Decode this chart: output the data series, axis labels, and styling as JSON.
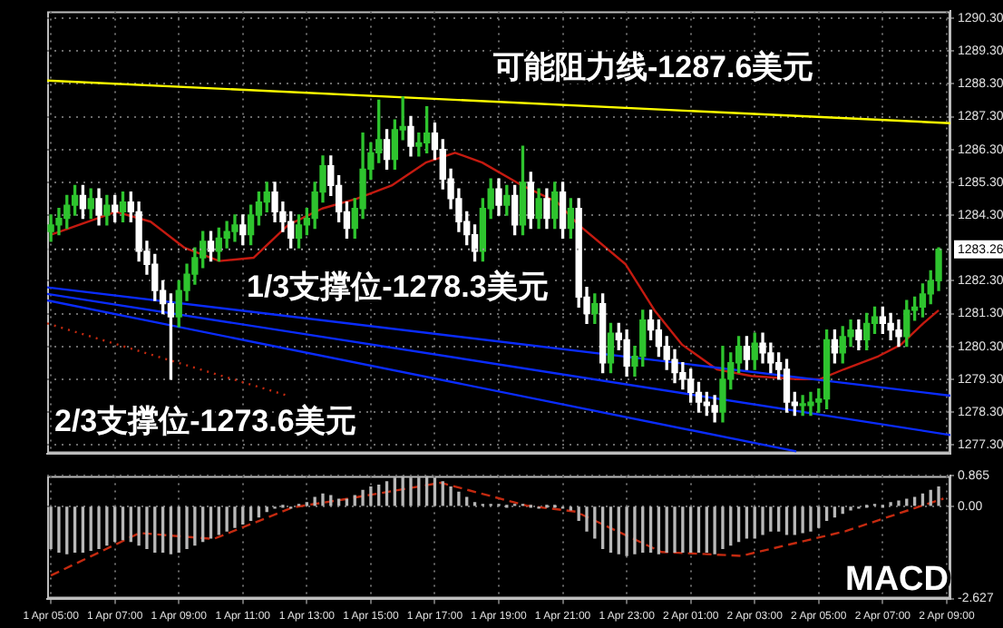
{
  "chart_data": [
    {
      "type": "candlestick",
      "x": [
        "--04-01T05:00",
        "--04-01T05:15",
        "--04-01T05:30",
        "--04-01T05:45",
        "--04-01T06:00",
        "--04-01T06:15",
        "--04-01T06:30",
        "--04-01T06:45",
        "--04-01T07:00",
        "--04-01T07:15",
        "--04-01T07:30",
        "--04-01T07:45",
        "--04-01T08:00",
        "--04-01T08:15",
        "--04-01T08:30",
        "--04-01T08:45",
        "--04-01T09:00",
        "--04-01T09:15",
        "--04-01T09:30",
        "--04-01T09:45",
        "--04-01T10:00",
        "--04-01T10:15",
        "--04-01T10:30",
        "--04-01T10:45",
        "--04-01T11:00",
        "--04-01T11:15",
        "--04-01T11:30",
        "--04-01T11:45",
        "--04-01T12:00",
        "--04-01T12:15",
        "--04-01T12:30",
        "--04-01T12:45",
        "--04-01T13:00",
        "--04-01T13:15",
        "--04-01T13:30",
        "--04-01T13:45",
        "--04-01T14:00",
        "--04-01T14:15",
        "--04-01T14:30",
        "--04-01T14:45",
        "--04-01T15:00",
        "--04-01T15:15",
        "--04-01T15:30",
        "--04-01T15:45",
        "--04-01T16:00",
        "--04-01T16:15",
        "--04-01T16:30",
        "--04-01T16:45",
        "--04-01T17:00",
        "--04-01T17:15",
        "--04-01T17:30",
        "--04-01T17:45",
        "--04-01T18:00",
        "--04-01T18:15",
        "--04-01T18:30",
        "--04-01T18:45",
        "--04-01T19:00",
        "--04-01T19:15",
        "--04-01T19:30",
        "--04-01T19:45",
        "--04-01T20:00",
        "--04-01T20:15",
        "--04-01T20:30",
        "--04-01T20:45",
        "--04-01T21:00",
        "--04-01T21:15",
        "--04-01T21:30",
        "--04-01T21:45",
        "--04-01T22:00",
        "--04-01T22:15",
        "--04-01T22:30",
        "--04-01T22:45",
        "--04-01T23:00",
        "--04-01T23:15",
        "--04-01T23:30",
        "--04-01T23:45",
        "--04-02T00:00",
        "--04-02T00:15",
        "--04-02T00:30",
        "--04-02T00:45",
        "--04-02T01:00",
        "--04-02T01:15",
        "--04-02T01:30",
        "--04-02T01:45",
        "--04-02T02:00",
        "--04-02T02:15",
        "--04-02T02:30",
        "--04-02T02:45",
        "--04-02T03:00",
        "--04-02T03:15",
        "--04-02T03:30",
        "--04-02T03:45",
        "--04-02T04:00",
        "--04-02T04:15",
        "--04-02T04:30",
        "--04-02T04:45",
        "--04-02T05:00",
        "--04-02T05:15",
        "--04-02T05:30",
        "--04-02T05:45",
        "--04-02T06:00",
        "--04-02T06:15",
        "--04-02T06:30",
        "--04-02T06:45",
        "--04-02T07:00",
        "--04-02T07:15",
        "--04-02T07:30",
        "--04-02T07:45",
        "--04-02T08:00",
        "--04-02T08:15",
        "--04-02T08:30",
        "--04-02T08:45"
      ],
      "ohlc": [
        [
          1283.8,
          1284.3,
          1283.5,
          1284.0
        ],
        [
          1284.0,
          1284.5,
          1283.7,
          1284.2
        ],
        [
          1284.2,
          1284.9,
          1283.9,
          1284.6
        ],
        [
          1284.6,
          1285.2,
          1284.3,
          1284.9
        ],
        [
          1284.9,
          1285.2,
          1284.2,
          1284.5
        ],
        [
          1284.5,
          1285.1,
          1284.2,
          1284.8
        ],
        [
          1284.8,
          1285.1,
          1284.0,
          1284.3
        ],
        [
          1284.3,
          1284.9,
          1284.0,
          1284.6
        ],
        [
          1284.6,
          1284.9,
          1284.1,
          1284.4
        ],
        [
          1284.4,
          1285.0,
          1284.1,
          1284.7
        ],
        [
          1284.7,
          1285.0,
          1284.1,
          1284.4
        ],
        [
          1284.4,
          1284.7,
          1282.9,
          1283.2
        ],
        [
          1283.2,
          1283.5,
          1282.5,
          1282.8
        ],
        [
          1282.8,
          1283.1,
          1281.7,
          1282.0
        ],
        [
          1282.0,
          1282.3,
          1281.3,
          1281.6
        ],
        [
          1281.6,
          1281.9,
          1279.3,
          1281.2
        ],
        [
          1281.2,
          1282.3,
          1280.9,
          1282.0
        ],
        [
          1282.0,
          1282.8,
          1281.7,
          1282.5
        ],
        [
          1282.5,
          1283.3,
          1282.2,
          1283.0
        ],
        [
          1283.0,
          1283.8,
          1282.7,
          1283.5
        ],
        [
          1283.5,
          1283.8,
          1282.9,
          1283.2
        ],
        [
          1283.2,
          1283.9,
          1282.9,
          1283.6
        ],
        [
          1283.6,
          1284.1,
          1283.3,
          1283.8
        ],
        [
          1283.8,
          1284.3,
          1283.5,
          1284.0
        ],
        [
          1284.0,
          1284.3,
          1283.4,
          1283.7
        ],
        [
          1283.7,
          1284.6,
          1283.4,
          1284.3
        ],
        [
          1284.3,
          1285.0,
          1284.0,
          1284.7
        ],
        [
          1284.7,
          1285.3,
          1284.4,
          1285.0
        ],
        [
          1285.0,
          1285.3,
          1284.1,
          1284.4
        ],
        [
          1284.4,
          1284.7,
          1283.8,
          1284.1
        ],
        [
          1284.1,
          1284.4,
          1283.3,
          1283.6
        ],
        [
          1283.6,
          1284.3,
          1283.3,
          1284.0
        ],
        [
          1284.0,
          1284.5,
          1283.7,
          1284.2
        ],
        [
          1284.2,
          1285.3,
          1283.9,
          1285.0
        ],
        [
          1285.0,
          1286.1,
          1284.7,
          1285.8
        ],
        [
          1285.8,
          1286.1,
          1284.9,
          1285.2
        ],
        [
          1285.2,
          1285.5,
          1284.1,
          1284.4
        ],
        [
          1284.4,
          1284.7,
          1283.6,
          1283.9
        ],
        [
          1283.9,
          1284.8,
          1283.6,
          1284.5
        ],
        [
          1284.5,
          1286.8,
          1284.2,
          1285.7
        ],
        [
          1285.7,
          1286.5,
          1285.4,
          1286.2
        ],
        [
          1286.2,
          1287.8,
          1285.9,
          1286.6
        ],
        [
          1286.6,
          1286.9,
          1285.7,
          1286.0
        ],
        [
          1286.0,
          1287.2,
          1285.7,
          1286.9
        ],
        [
          1286.9,
          1287.9,
          1286.6,
          1287.0
        ],
        [
          1287.0,
          1287.3,
          1286.1,
          1286.4
        ],
        [
          1286.4,
          1286.8,
          1286.1,
          1286.5
        ],
        [
          1286.5,
          1287.6,
          1286.2,
          1286.8
        ],
        [
          1286.8,
          1287.1,
          1286.0,
          1286.3
        ],
        [
          1286.3,
          1286.6,
          1285.1,
          1285.4
        ],
        [
          1285.4,
          1285.7,
          1284.5,
          1284.8
        ],
        [
          1284.8,
          1285.1,
          1283.8,
          1284.1
        ],
        [
          1284.1,
          1284.4,
          1283.4,
          1283.7
        ],
        [
          1283.7,
          1284.0,
          1282.9,
          1283.2
        ],
        [
          1283.2,
          1284.8,
          1282.9,
          1284.5
        ],
        [
          1284.5,
          1285.4,
          1284.2,
          1285.1
        ],
        [
          1285.1,
          1285.4,
          1284.3,
          1284.6
        ],
        [
          1284.6,
          1285.2,
          1284.3,
          1284.9
        ],
        [
          1284.9,
          1285.2,
          1283.7,
          1284.0
        ],
        [
          1284.0,
          1286.4,
          1283.7,
          1285.3
        ],
        [
          1285.3,
          1285.6,
          1283.9,
          1284.2
        ],
        [
          1284.2,
          1285.1,
          1283.9,
          1284.8
        ],
        [
          1284.8,
          1285.1,
          1283.9,
          1284.2
        ],
        [
          1284.2,
          1285.3,
          1283.9,
          1285.0
        ],
        [
          1285.0,
          1285.3,
          1283.6,
          1283.9
        ],
        [
          1283.9,
          1284.8,
          1283.6,
          1284.5
        ],
        [
          1284.5,
          1284.8,
          1281.5,
          1281.8
        ],
        [
          1281.8,
          1282.1,
          1281.0,
          1281.3
        ],
        [
          1281.3,
          1281.9,
          1281.0,
          1281.6
        ],
        [
          1281.6,
          1281.9,
          1279.5,
          1279.8
        ],
        [
          1279.8,
          1281.0,
          1279.5,
          1280.7
        ],
        [
          1280.7,
          1281.0,
          1280.2,
          1280.5
        ],
        [
          1280.5,
          1280.8,
          1279.4,
          1279.7
        ],
        [
          1279.7,
          1280.3,
          1279.4,
          1280.0
        ],
        [
          1280.0,
          1281.4,
          1279.7,
          1281.1
        ],
        [
          1281.1,
          1281.4,
          1280.5,
          1280.8
        ],
        [
          1280.8,
          1281.1,
          1280.0,
          1280.3
        ],
        [
          1280.3,
          1280.6,
          1279.6,
          1279.9
        ],
        [
          1279.9,
          1280.2,
          1279.2,
          1279.5
        ],
        [
          1279.5,
          1279.8,
          1279.0,
          1279.3
        ],
        [
          1279.3,
          1279.6,
          1278.6,
          1278.9
        ],
        [
          1278.9,
          1279.2,
          1278.3,
          1278.6
        ],
        [
          1278.6,
          1278.9,
          1278.2,
          1278.5
        ],
        [
          1278.5,
          1278.8,
          1278.0,
          1278.3
        ],
        [
          1278.3,
          1280.3,
          1278.0,
          1279.3
        ],
        [
          1279.3,
          1280.1,
          1279.0,
          1279.8
        ],
        [
          1279.8,
          1280.6,
          1279.5,
          1280.3
        ],
        [
          1280.3,
          1280.6,
          1279.6,
          1279.9
        ],
        [
          1279.9,
          1280.7,
          1279.6,
          1280.4
        ],
        [
          1280.4,
          1280.7,
          1279.8,
          1280.1
        ],
        [
          1280.1,
          1280.4,
          1279.5,
          1279.8
        ],
        [
          1279.8,
          1280.1,
          1279.3,
          1279.6
        ],
        [
          1279.6,
          1279.9,
          1278.3,
          1278.6
        ],
        [
          1278.6,
          1278.9,
          1278.2,
          1278.5
        ],
        [
          1278.5,
          1278.8,
          1278.2,
          1278.5
        ],
        [
          1278.5,
          1278.9,
          1278.2,
          1278.6
        ],
        [
          1278.6,
          1279.0,
          1278.3,
          1278.7
        ],
        [
          1278.7,
          1280.8,
          1278.4,
          1280.5
        ],
        [
          1280.5,
          1280.8,
          1279.8,
          1280.1
        ],
        [
          1280.1,
          1280.9,
          1279.8,
          1280.6
        ],
        [
          1280.6,
          1281.1,
          1280.3,
          1280.8
        ],
        [
          1280.8,
          1281.1,
          1280.2,
          1280.5
        ],
        [
          1280.5,
          1281.3,
          1280.2,
          1281.0
        ],
        [
          1281.0,
          1281.5,
          1280.7,
          1281.2
        ],
        [
          1281.2,
          1281.5,
          1280.7,
          1281.0
        ],
        [
          1281.0,
          1281.3,
          1280.5,
          1280.8
        ],
        [
          1280.8,
          1281.1,
          1280.3,
          1280.6
        ],
        [
          1280.6,
          1281.7,
          1280.3,
          1281.4
        ],
        [
          1281.4,
          1281.8,
          1281.1,
          1281.5
        ],
        [
          1281.5,
          1282.2,
          1281.2,
          1281.9
        ],
        [
          1281.9,
          1282.6,
          1281.6,
          1282.3
        ],
        [
          1282.3,
          1283.3,
          1282.0,
          1283.26
        ]
      ],
      "colors": [
        "#2ec42e",
        "#2ec42e",
        "#2ec42e",
        "#2ec42e",
        "#ffffff",
        "#2ec42e",
        "#ffffff",
        "#2ec42e",
        "#ffffff",
        "#2ec42e",
        "#ffffff",
        "#ffffff",
        "#ffffff",
        "#ffffff",
        "#ffffff",
        "#ffffff",
        "#2ec42e",
        "#2ec42e",
        "#2ec42e",
        "#2ec42e",
        "#ffffff",
        "#2ec42e",
        "#2ec42e",
        "#2ec42e",
        "#ffffff",
        "#2ec42e",
        "#2ec42e",
        "#2ec42e",
        "#ffffff",
        "#ffffff",
        "#ffffff",
        "#2ec42e",
        "#2ec42e",
        "#2ec42e",
        "#2ec42e",
        "#ffffff",
        "#ffffff",
        "#ffffff",
        "#2ec42e",
        "#2ec42e",
        "#2ec42e",
        "#2ec42e",
        "#ffffff",
        "#2ec42e",
        "#2ec42e",
        "#ffffff",
        "#2ec42e",
        "#2ec42e",
        "#ffffff",
        "#ffffff",
        "#ffffff",
        "#ffffff",
        "#ffffff",
        "#ffffff",
        "#2ec42e",
        "#2ec42e",
        "#ffffff",
        "#2ec42e",
        "#ffffff",
        "#2ec42e",
        "#ffffff",
        "#2ec42e",
        "#ffffff",
        "#2ec42e",
        "#ffffff",
        "#2ec42e",
        "#ffffff",
        "#ffffff",
        "#2ec42e",
        "#ffffff",
        "#2ec42e",
        "#ffffff",
        "#ffffff",
        "#2ec42e",
        "#2ec42e",
        "#ffffff",
        "#ffffff",
        "#ffffff",
        "#ffffff",
        "#ffffff",
        "#ffffff",
        "#ffffff",
        "#ffffff",
        "#ffffff",
        "#2ec42e",
        "#2ec42e",
        "#2ec42e",
        "#ffffff",
        "#2ec42e",
        "#ffffff",
        "#ffffff",
        "#ffffff",
        "#ffffff",
        "#ffffff",
        "#2ec42e",
        "#2ec42e",
        "#2ec42e",
        "#2ec42e",
        "#ffffff",
        "#2ec42e",
        "#2ec42e",
        "#ffffff",
        "#2ec42e",
        "#2ec42e",
        "#ffffff",
        "#ffffff",
        "#ffffff",
        "#2ec42e",
        "#2ec42e",
        "#2ec42e",
        "#2ec42e",
        "#2ec42e"
      ],
      "series": [
        {
          "type": "line",
          "color": "#ffff00",
          "x": [
            "--04-01T04:53",
            "--04-02T09:07"
          ],
          "values": [
            1288.4,
            1287.1
          ]
        },
        {
          "type": "line",
          "color": "#0a2cff",
          "x": [
            "--04-01T04:53",
            "--04-02T09:07"
          ],
          "values": [
            1282.1,
            1278.8
          ]
        },
        {
          "type": "line",
          "color": "#0a2cff",
          "x": [
            "--04-01T04:53",
            "--04-02T09:07"
          ],
          "values": [
            1281.9,
            1277.6
          ]
        },
        {
          "type": "line",
          "color": "#0a2cff",
          "x": [
            "--04-01T04:53",
            "--04-02T04:18"
          ],
          "values": [
            1281.7,
            1277.1
          ]
        },
        {
          "type": "line",
          "color": "#c42a10",
          "line_style": "dotted",
          "x": [
            "--04-01T04:53",
            "--04-01T12:24"
          ],
          "values": [
            1281.0,
            1278.8
          ]
        },
        {
          "type": "line",
          "color": "#c41a10",
          "x": [
            "--04-01T05:00",
            "--04-01T07:02",
            "--04-01T08:07",
            "--04-01T09:11",
            "--04-01T10:16",
            "--04-01T11:20",
            "--04-01T12:25",
            "--04-01T13:29",
            "--04-01T14:34",
            "--04-01T15:39",
            "--04-01T16:43",
            "--04-01T17:38",
            "--04-01T18:29",
            "--04-01T19:44",
            "--04-01T20:49",
            "--04-01T21:30",
            "--04-01T22:58",
            "--04-01T23:52",
            "--04-02T00:44",
            "--04-02T01:49",
            "--04-02T02:53",
            "--04-02T04:20",
            "--04-02T05:02",
            "--04-02T05:47",
            "--04-02T06:52",
            "--04-02T07:34",
            "--04-02T08:16",
            "--04-02T08:45"
          ],
          "values": [
            1283.7,
            1284.4,
            1284.1,
            1283.3,
            1282.9,
            1283.0,
            1284.0,
            1284.5,
            1284.8,
            1285.2,
            1285.9,
            1286.2,
            1285.9,
            1285.2,
            1284.7,
            1284.0,
            1282.8,
            1281.4,
            1280.35,
            1279.6,
            1279.4,
            1279.3,
            1279.3,
            1279.6,
            1280.0,
            1280.35,
            1281.0,
            1281.4
          ]
        }
      ],
      "xlim": [
        "--04-01T04:53",
        "--04-02T09:07"
      ],
      "xticks": [
        {
          "value": "--04-01T05:00",
          "label": null
        },
        {
          "value": "--04-01T07:00",
          "label": null
        },
        {
          "value": "--04-01T09:00",
          "label": null
        },
        {
          "value": "--04-01T11:00",
          "label": null
        },
        {
          "value": "--04-01T13:00",
          "label": null
        },
        {
          "value": "--04-01T15:00",
          "label": null
        },
        {
          "value": "--04-01T17:00",
          "label": null
        },
        {
          "value": "--04-01T19:00",
          "label": null
        },
        {
          "value": "--04-01T21:00",
          "label": null
        },
        {
          "value": "--04-01T23:00",
          "label": null
        },
        {
          "value": "--04-02T01:00",
          "label": null
        },
        {
          "value": "--04-02T03:00",
          "label": null
        },
        {
          "value": "--04-02T05:00",
          "label": null
        },
        {
          "value": "--04-02T07:00",
          "label": null
        },
        {
          "value": "--04-02T09:00",
          "label": null
        }
      ],
      "ylim": [
        1277.04,
        1290.51
      ],
      "yticks": [
        {
          "value": 1277.3,
          "label": "1277.30"
        },
        {
          "value": 1278.3,
          "label": "1278.30"
        },
        {
          "value": 1279.3,
          "label": "1279.30"
        },
        {
          "value": 1280.3,
          "label": "1280.30"
        },
        {
          "value": 1281.3,
          "label": "1281.30"
        },
        {
          "value": 1282.3,
          "label": "1282.30"
        },
        {
          "value": 1284.3,
          "label": "1284.30"
        },
        {
          "value": 1285.3,
          "label": "1285.30"
        },
        {
          "value": 1286.3,
          "label": "1286.30"
        },
        {
          "value": 1287.3,
          "label": "1287.30"
        },
        {
          "value": 1288.3,
          "label": "1288.30"
        },
        {
          "value": 1289.3,
          "label": "1289.30"
        },
        {
          "value": 1290.3,
          "label": "1290.30"
        }
      ],
      "tick_labels": "y",
      "grid": true,
      "ref_lines": [
        {
          "axis": "y",
          "value": 1283.26,
          "label": "1283.26",
          "color": "#9a9a9a",
          "line_style": "dotted"
        }
      ],
      "annotations": [
        "可能阻力线-1287.6美元",
        "1/3支撑位-1278.3美元",
        "2/3支撑位-1273.6美元"
      ]
    },
    {
      "type": "bar",
      "x": [
        "--04-01T05:00",
        "--04-01T05:15",
        "--04-01T05:30",
        "--04-01T05:45",
        "--04-01T06:00",
        "--04-01T06:15",
        "--04-01T06:30",
        "--04-01T06:45",
        "--04-01T07:00",
        "--04-01T07:15",
        "--04-01T07:30",
        "--04-01T07:45",
        "--04-01T08:00",
        "--04-01T08:15",
        "--04-01T08:30",
        "--04-01T08:45",
        "--04-01T09:00",
        "--04-01T09:15",
        "--04-01T09:30",
        "--04-01T09:45",
        "--04-01T10:00",
        "--04-01T10:15",
        "--04-01T10:30",
        "--04-01T10:45",
        "--04-01T11:00",
        "--04-01T11:15",
        "--04-01T11:30",
        "--04-01T11:45",
        "--04-01T12:00",
        "--04-01T12:15",
        "--04-01T12:30",
        "--04-01T12:45",
        "--04-01T13:00",
        "--04-01T13:15",
        "--04-01T13:30",
        "--04-01T13:45",
        "--04-01T14:00",
        "--04-01T14:15",
        "--04-01T14:30",
        "--04-01T14:45",
        "--04-01T15:00",
        "--04-01T15:15",
        "--04-01T15:30",
        "--04-01T15:45",
        "--04-01T16:00",
        "--04-01T16:15",
        "--04-01T16:30",
        "--04-01T16:45",
        "--04-01T17:00",
        "--04-01T17:15",
        "--04-01T17:30",
        "--04-01T17:45",
        "--04-01T18:00",
        "--04-01T18:15",
        "--04-01T18:30",
        "--04-01T18:45",
        "--04-01T19:00",
        "--04-01T19:15",
        "--04-01T19:30",
        "--04-01T19:45",
        "--04-01T20:00",
        "--04-01T20:15",
        "--04-01T20:30",
        "--04-01T20:45",
        "--04-01T21:00",
        "--04-01T21:15",
        "--04-01T21:30",
        "--04-01T21:45",
        "--04-01T22:00",
        "--04-01T22:15",
        "--04-01T22:30",
        "--04-01T22:45",
        "--04-01T23:00",
        "--04-01T23:15",
        "--04-01T23:30",
        "--04-01T23:45",
        "--04-02T00:00",
        "--04-02T00:15",
        "--04-02T00:30",
        "--04-02T00:45",
        "--04-02T01:00",
        "--04-02T01:15",
        "--04-02T01:30",
        "--04-02T01:45",
        "--04-02T02:00",
        "--04-02T02:15",
        "--04-02T02:30",
        "--04-02T02:45",
        "--04-02T03:00",
        "--04-02T03:15",
        "--04-02T03:30",
        "--04-02T03:45",
        "--04-02T04:00",
        "--04-02T04:15",
        "--04-02T04:30",
        "--04-02T04:45",
        "--04-02T05:00",
        "--04-02T05:15",
        "--04-02T05:30",
        "--04-02T05:45",
        "--04-02T06:00",
        "--04-02T06:15",
        "--04-02T06:30",
        "--04-02T06:45",
        "--04-02T07:00",
        "--04-02T07:15",
        "--04-02T07:30",
        "--04-02T07:45",
        "--04-02T08:00",
        "--04-02T08:15",
        "--04-02T08:30",
        "--04-02T08:45"
      ],
      "series": [
        {
          "type": "bar",
          "color": "#b8b8b8",
          "values": [
            -1.2,
            -1.3,
            -1.35,
            -1.3,
            -1.3,
            -1.25,
            -1.2,
            -1.1,
            -1.0,
            -0.95,
            -1.0,
            -1.1,
            -1.2,
            -1.3,
            -1.3,
            -1.35,
            -1.3,
            -1.2,
            -1.1,
            -1.0,
            -0.9,
            -0.8,
            -0.7,
            -0.6,
            -0.5,
            -0.4,
            -0.3,
            -0.15,
            -0.05,
            0.0,
            -0.05,
            0.05,
            0.1,
            0.25,
            0.35,
            0.3,
            0.2,
            0.2,
            0.3,
            0.45,
            0.55,
            0.6,
            0.7,
            0.8,
            0.85,
            0.8,
            0.8,
            0.85,
            0.8,
            0.7,
            0.55,
            0.4,
            0.25,
            0.1,
            0.05,
            0.05,
            0.05,
            0.0,
            0.05,
            0.05,
            0.0,
            -0.05,
            0.0,
            0.0,
            -0.05,
            -0.1,
            -0.4,
            -0.7,
            -0.9,
            -1.2,
            -1.3,
            -1.35,
            -1.4,
            -1.35,
            -1.3,
            -1.3,
            -1.35,
            -1.3,
            -1.3,
            -1.3,
            -1.3,
            -1.3,
            -1.3,
            -1.35,
            -1.2,
            -1.1,
            -1.0,
            -0.9,
            -0.9,
            -0.8,
            -0.7,
            -0.7,
            -0.8,
            -0.8,
            -0.75,
            -0.7,
            -0.6,
            -0.4,
            -0.3,
            -0.2,
            -0.1,
            -0.05,
            0.0,
            0.05,
            0.0,
            0.1,
            0.15,
            0.2,
            0.25,
            0.35,
            0.45,
            0.55
          ]
        },
        {
          "type": "line",
          "color": "#c42a10",
          "line_style": "dashed",
          "x": [
            "--04-01T05:00",
            "--04-01T07:46",
            "--04-01T10:05",
            "--04-01T12:34",
            "--04-01T14:07",
            "--04-01T17:11",
            "--04-01T19:52",
            "--04-01T21:24",
            "--04-02T00:05",
            "--04-02T02:35",
            "--04-02T05:50",
            "--04-02T08:54"
          ],
          "values": [
            -1.97,
            -0.76,
            -0.93,
            -0.03,
            0.19,
            0.67,
            0.02,
            -0.15,
            -1.3,
            -1.41,
            -0.71,
            0.22
          ]
        }
      ],
      "xlim": [
        "--04-01T04:53",
        "--04-02T09:07"
      ],
      "xticks": [
        {
          "value": "--04-01T05:00",
          "label": "1 Apr 05:00"
        },
        {
          "value": "--04-01T07:00",
          "label": "1 Apr 07:00"
        },
        {
          "value": "--04-01T09:00",
          "label": "1 Apr 09:00"
        },
        {
          "value": "--04-01T11:00",
          "label": "1 Apr 11:00"
        },
        {
          "value": "--04-01T13:00",
          "label": "1 Apr 13:00"
        },
        {
          "value": "--04-01T15:00",
          "label": "1 Apr 15:00"
        },
        {
          "value": "--04-01T17:00",
          "label": "1 Apr 17:00"
        },
        {
          "value": "--04-01T19:00",
          "label": "1 Apr 19:00"
        },
        {
          "value": "--04-01T21:00",
          "label": "1 Apr 21:00"
        },
        {
          "value": "--04-01T23:00",
          "label": "1 Apr 23:00"
        },
        {
          "value": "--04-02T01:00",
          "label": "2 Apr 01:00"
        },
        {
          "value": "--04-02T03:00",
          "label": "2 Apr 03:00"
        },
        {
          "value": "--04-02T05:00",
          "label": "2 Apr 05:00"
        },
        {
          "value": "--04-02T07:00",
          "label": "2 Apr 07:00"
        },
        {
          "value": "--04-02T09:00",
          "label": "2 Apr 09:00"
        }
      ],
      "ylim": [
        -2.627,
        0.865
      ],
      "yticks": [
        0.865,
        {
          "value": 0,
          "label": "0.00"
        },
        -2.627
      ],
      "grid": true,
      "annotations": [
        "MACD"
      ]
    }
  ]
}
